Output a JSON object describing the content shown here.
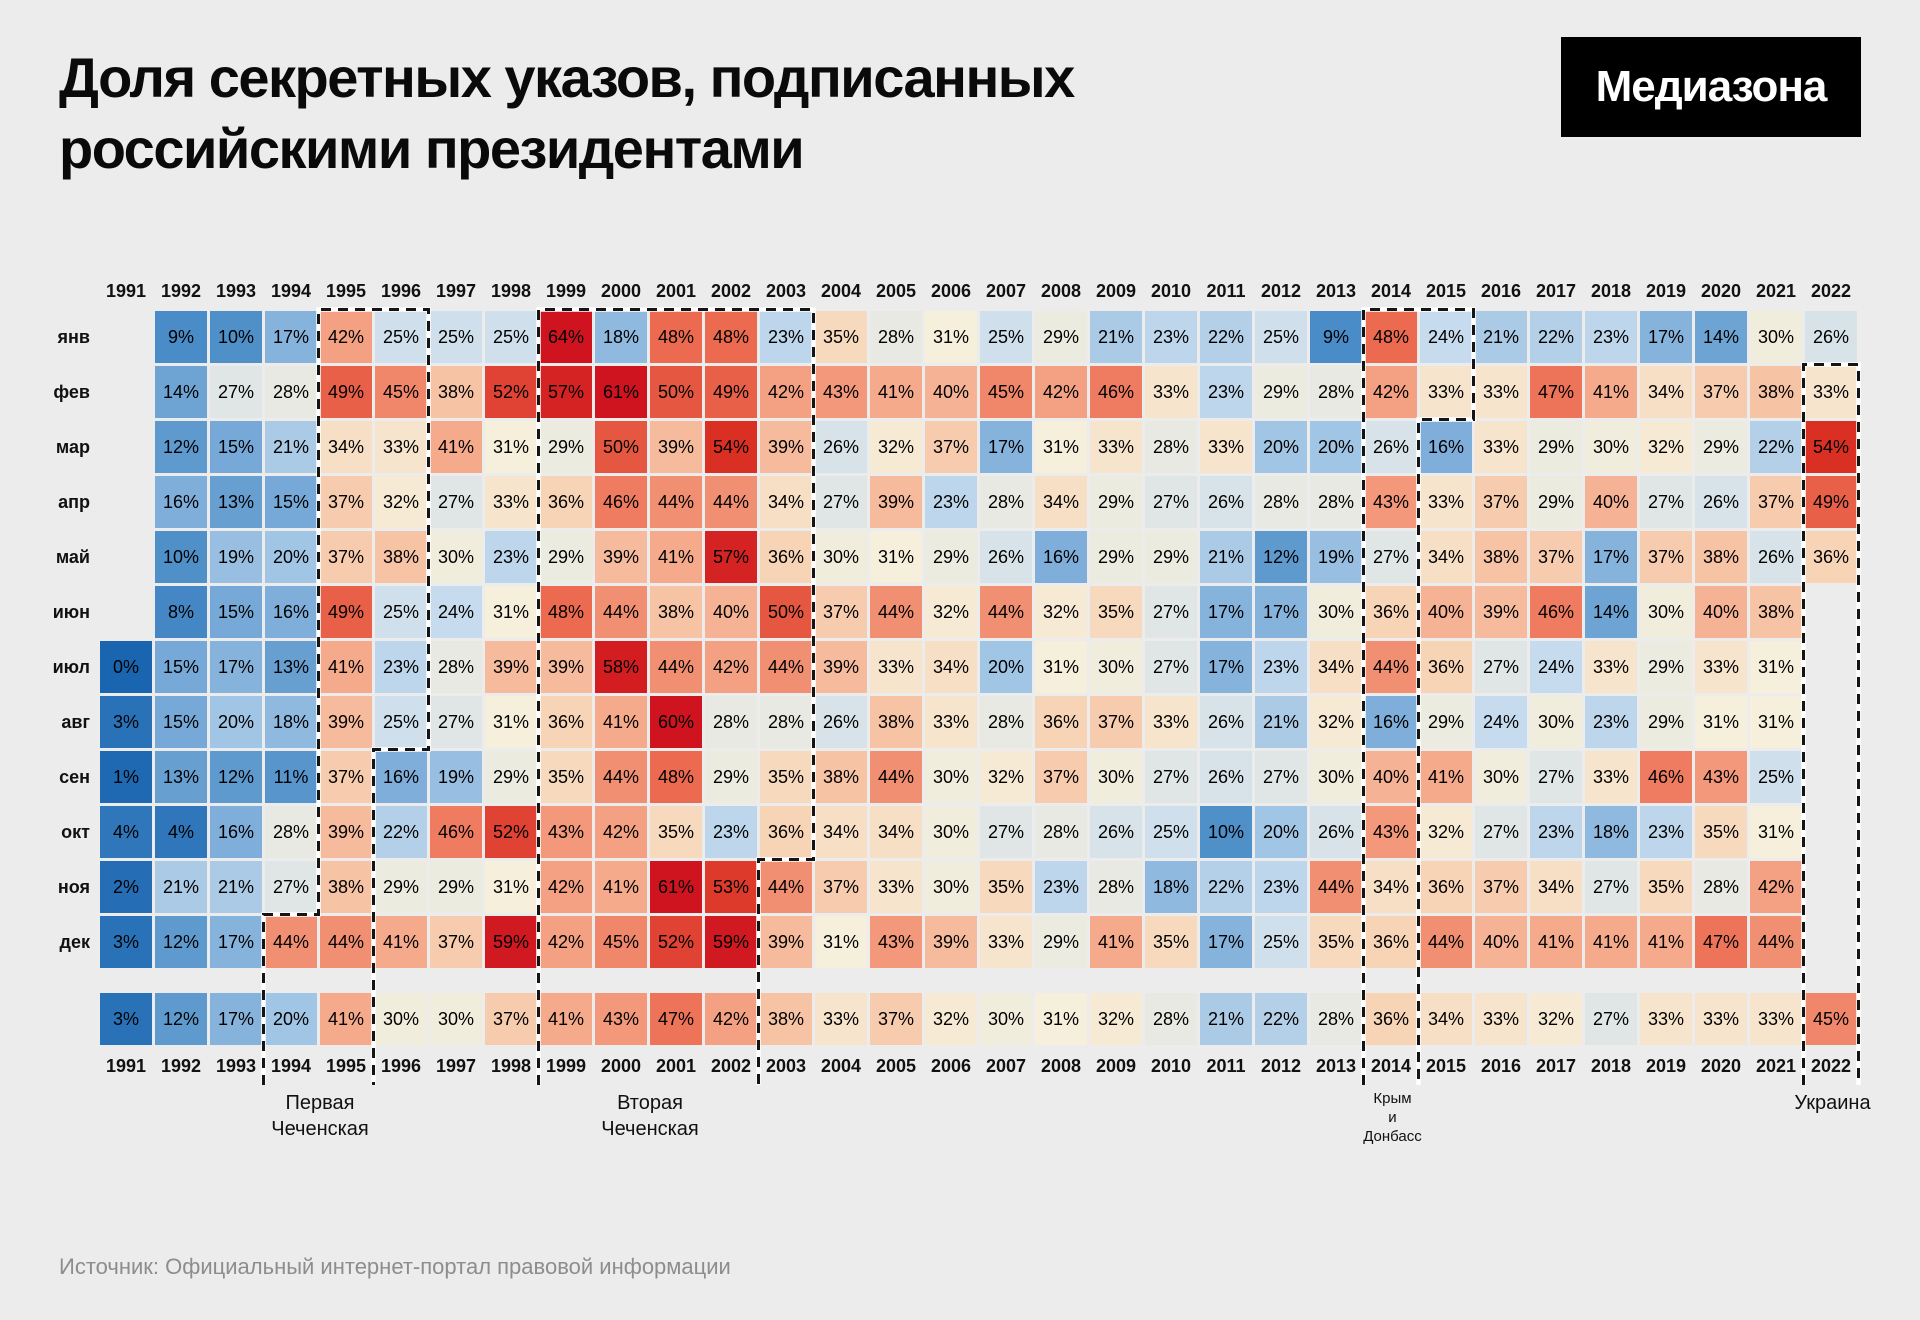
{
  "header": {
    "title_line1": "Доля секретных указов, подписанных",
    "title_line2": "российскими президентами",
    "logo": "Медиазона"
  },
  "footer": {
    "source": "Источник: Официальный интернет-портал правовой информации"
  },
  "chart_data": {
    "type": "heatmap",
    "title": "Доля секретных указов, подписанных российскими президентами",
    "value_suffix": "%",
    "x_labels": [
      "1991",
      "1992",
      "1993",
      "1994",
      "1995",
      "1996",
      "1997",
      "1998",
      "1999",
      "2000",
      "2001",
      "2002",
      "2003",
      "2004",
      "2005",
      "2006",
      "2007",
      "2008",
      "2009",
      "2010",
      "2011",
      "2012",
      "2013",
      "2014",
      "2015",
      "2016",
      "2017",
      "2018",
      "2019",
      "2020",
      "2021",
      "2022"
    ],
    "y_labels": [
      "янв",
      "фев",
      "мар",
      "апр",
      "май",
      "июн",
      "июл",
      "авг",
      "сен",
      "окт",
      "ноя",
      "дек"
    ],
    "rows": [
      {
        "month": "янв",
        "values": [
          null,
          9,
          10,
          17,
          42,
          25,
          25,
          25,
          64,
          18,
          48,
          48,
          23,
          35,
          28,
          31,
          25,
          29,
          21,
          23,
          22,
          25,
          9,
          48,
          24,
          21,
          22,
          23,
          17,
          14,
          30,
          26
        ]
      },
      {
        "month": "фев",
        "values": [
          null,
          14,
          27,
          28,
          49,
          45,
          38,
          52,
          57,
          61,
          50,
          49,
          42,
          43,
          41,
          40,
          45,
          42,
          46,
          33,
          23,
          29,
          28,
          42,
          33,
          33,
          47,
          41,
          34,
          37,
          38,
          33
        ]
      },
      {
        "month": "мар",
        "values": [
          null,
          12,
          15,
          21,
          34,
          33,
          41,
          31,
          29,
          50,
          39,
          54,
          39,
          26,
          32,
          37,
          17,
          31,
          33,
          28,
          33,
          20,
          20,
          26,
          16,
          33,
          29,
          30,
          32,
          29,
          22,
          54
        ]
      },
      {
        "month": "апр",
        "values": [
          null,
          16,
          13,
          15,
          37,
          32,
          27,
          33,
          36,
          46,
          44,
          44,
          34,
          27,
          39,
          23,
          28,
          34,
          29,
          27,
          26,
          28,
          28,
          43,
          33,
          37,
          29,
          40,
          27,
          26,
          37,
          49
        ]
      },
      {
        "month": "май",
        "values": [
          null,
          10,
          19,
          20,
          37,
          38,
          30,
          23,
          29,
          39,
          41,
          57,
          36,
          30,
          31,
          29,
          26,
          16,
          29,
          29,
          21,
          12,
          19,
          27,
          34,
          38,
          37,
          17,
          37,
          38,
          26,
          36
        ]
      },
      {
        "month": "июн",
        "values": [
          null,
          8,
          15,
          16,
          49,
          25,
          24,
          31,
          48,
          44,
          38,
          40,
          50,
          37,
          44,
          32,
          44,
          32,
          35,
          27,
          17,
          17,
          30,
          36,
          40,
          39,
          46,
          14,
          30,
          40,
          38,
          null
        ]
      },
      {
        "month": "июл",
        "values": [
          0,
          15,
          17,
          13,
          41,
          23,
          28,
          39,
          39,
          58,
          44,
          42,
          44,
          39,
          33,
          34,
          20,
          31,
          30,
          27,
          17,
          23,
          34,
          44,
          36,
          27,
          24,
          33,
          29,
          33,
          31,
          null
        ]
      },
      {
        "month": "авг",
        "values": [
          3,
          15,
          20,
          18,
          39,
          25,
          27,
          31,
          36,
          41,
          60,
          28,
          28,
          26,
          38,
          33,
          28,
          36,
          37,
          33,
          26,
          21,
          32,
          16,
          29,
          24,
          30,
          23,
          29,
          31,
          31,
          null
        ]
      },
      {
        "month": "сен",
        "values": [
          1,
          13,
          12,
          11,
          37,
          16,
          19,
          29,
          35,
          44,
          48,
          29,
          35,
          38,
          44,
          30,
          32,
          37,
          30,
          27,
          26,
          27,
          30,
          40,
          41,
          30,
          27,
          33,
          46,
          43,
          25,
          null
        ]
      },
      {
        "month": "окт",
        "values": [
          4,
          4,
          16,
          28,
          39,
          22,
          46,
          52,
          43,
          42,
          35,
          23,
          36,
          34,
          34,
          30,
          27,
          28,
          26,
          25,
          10,
          20,
          26,
          43,
          32,
          27,
          23,
          18,
          23,
          35,
          31,
          null
        ]
      },
      {
        "month": "ноя",
        "values": [
          2,
          21,
          21,
          27,
          38,
          29,
          29,
          31,
          42,
          41,
          61,
          53,
          44,
          37,
          33,
          30,
          35,
          23,
          28,
          18,
          22,
          23,
          44,
          34,
          36,
          37,
          34,
          27,
          35,
          28,
          42,
          null
        ]
      },
      {
        "month": "дек",
        "values": [
          3,
          12,
          17,
          44,
          44,
          41,
          37,
          59,
          42,
          45,
          52,
          59,
          39,
          31,
          43,
          39,
          33,
          29,
          41,
          35,
          17,
          25,
          35,
          36,
          44,
          40,
          41,
          41,
          41,
          47,
          44,
          null
        ]
      }
    ],
    "yearly_values": [
      3,
      12,
      17,
      20,
      41,
      30,
      30,
      37,
      41,
      43,
      47,
      42,
      38,
      33,
      37,
      32,
      30,
      31,
      32,
      28,
      21,
      22,
      28,
      36,
      34,
      33,
      32,
      27,
      33,
      33,
      33,
      45
    ],
    "color_stops": [
      [
        0,
        "#1a65b0"
      ],
      [
        10,
        "#4f90c9"
      ],
      [
        17,
        "#86b3dc"
      ],
      [
        24,
        "#c6dcee"
      ],
      [
        28,
        "#e8e9e2"
      ],
      [
        31,
        "#f5efdb"
      ],
      [
        36,
        "#f8d4b6"
      ],
      [
        42,
        "#f4a183"
      ],
      [
        48,
        "#ec6a50"
      ],
      [
        54,
        "#da3024"
      ],
      [
        60,
        "#cf1420"
      ]
    ],
    "annotations": [
      {
        "label_lines": [
          "Первая",
          "Чеченская"
        ],
        "small": false,
        "label_cx": 4,
        "outline": [
          [
            3,
            14.1
          ],
          [
            3,
            11
          ],
          [
            4,
            11
          ],
          [
            4,
            0
          ],
          [
            6,
            0
          ],
          [
            6,
            8
          ],
          [
            5,
            8
          ],
          [
            5,
            14.1
          ]
        ]
      },
      {
        "label_lines": [
          "Вторая",
          "Чеченская"
        ],
        "small": false,
        "label_cx": 10,
        "outline": [
          [
            8,
            14.1
          ],
          [
            8,
            0
          ],
          [
            13,
            0
          ],
          [
            13,
            10
          ],
          [
            12,
            10
          ],
          [
            12,
            14.1
          ]
        ]
      },
      {
        "label_lines": [
          "Крым",
          "и",
          "Донбасс"
        ],
        "small": true,
        "label_cx": 23.5,
        "outline": [
          [
            23,
            14.1
          ],
          [
            23,
            0
          ],
          [
            25,
            0
          ],
          [
            25,
            2
          ],
          [
            24,
            2
          ],
          [
            24,
            14.1
          ]
        ]
      },
      {
        "label_lines": [
          "Украина"
        ],
        "small": false,
        "label_cx": 31.5,
        "outline": [
          [
            31,
            14.1
          ],
          [
            31,
            1
          ],
          [
            32,
            1
          ],
          [
            32,
            14.1
          ]
        ]
      }
    ]
  }
}
